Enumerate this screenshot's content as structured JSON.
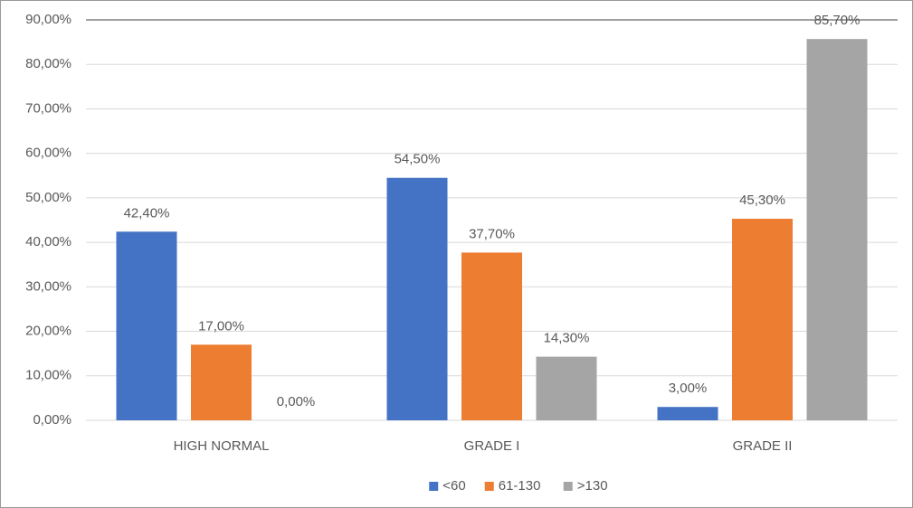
{
  "chart_data": {
    "type": "bar",
    "categories": [
      "HIGH NORMAL",
      "GRADE I",
      "GRADE II"
    ],
    "series": [
      {
        "name": "<60",
        "color": "#4472c4",
        "values": [
          42.4,
          54.5,
          3.0
        ],
        "value_labels": [
          "42,40%",
          "54,50%",
          "3,00%"
        ]
      },
      {
        "name": "61-130",
        "color": "#ed7d31",
        "values": [
          17.0,
          37.7,
          45.3
        ],
        "value_labels": [
          "17,00%",
          "37,70%",
          "45,30%"
        ]
      },
      {
        "name": ">130",
        "color": "#a5a5a5",
        "values": [
          0.0,
          14.3,
          85.7
        ],
        "value_labels": [
          "0,00%",
          "14,30%",
          "85,70%"
        ]
      }
    ],
    "ylim": [
      0,
      90
    ],
    "yticks": [
      {
        "value": 0,
        "label": "0,00%"
      },
      {
        "value": 10,
        "label": "10,00%"
      },
      {
        "value": 20,
        "label": "20,00%"
      },
      {
        "value": 30,
        "label": "30,00%"
      },
      {
        "value": 40,
        "label": "40,00%"
      },
      {
        "value": 50,
        "label": "50,00%"
      },
      {
        "value": 60,
        "label": "60,00%"
      },
      {
        "value": 70,
        "label": "70,00%"
      },
      {
        "value": 80,
        "label": "80,00%"
      },
      {
        "value": 90,
        "label": "90,00%"
      }
    ],
    "grid": true,
    "legend": "bottom"
  }
}
